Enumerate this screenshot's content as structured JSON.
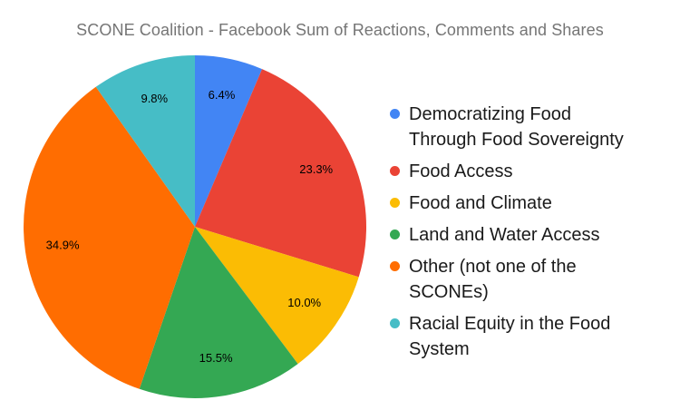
{
  "chart_data": {
    "type": "pie",
    "title": "SCONE Coalition - Facebook Sum of Reactions, Comments and Shares",
    "categories": [
      "Democratizing Food Through Food Sovereignty",
      "Food Access",
      "Food and Climate",
      "Land and Water Access",
      "Other (not one of the SCONEs)",
      "Racial Equity in the Food System"
    ],
    "values": [
      6.4,
      23.3,
      10.0,
      15.5,
      34.9,
      9.8
    ],
    "slice_labels": [
      "6.4%",
      "23.3%",
      "10.0%",
      "15.5%",
      "34.9%",
      "9.8%"
    ],
    "colors": [
      "#4285f4",
      "#ea4335",
      "#fbbc04",
      "#34a853",
      "#ff6d01",
      "#46bdc6"
    ],
    "legend_position": "right",
    "start_angle_deg": 0,
    "direction": "clockwise",
    "slice_label_color": "#000000",
    "title_color": "#757575",
    "background_color": "#ffffff"
  }
}
